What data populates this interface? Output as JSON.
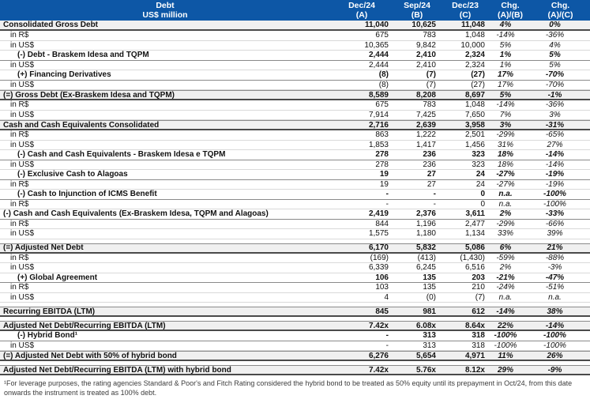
{
  "header": {
    "title": "Debt",
    "subtitle": "US$ million",
    "columns": [
      {
        "line1": "Dec/24",
        "line2": "(A)"
      },
      {
        "line1": "Sep/24",
        "line2": "(B)"
      },
      {
        "line1": "Dec/23",
        "line2": "(C)"
      },
      {
        "line1": "Chg.",
        "line2": "(A)/(B)"
      },
      {
        "line1": "Chg.",
        "line2": "(A)/(C)"
      }
    ]
  },
  "colors": {
    "header_bg": "#0d57a6",
    "header_text": "#ffffff",
    "section_row_bg": "#f0f0f0",
    "border_dark": "#4a4a4a",
    "border_medium": "#8a8a8a",
    "border_light": "#d9d9d9"
  },
  "rows": [
    {
      "label": "Consolidated Gross Debt",
      "a": "11,040",
      "b": "10,625",
      "c": "11,048",
      "ab": "4%",
      "ac": "0%",
      "style": "section",
      "indent": 0,
      "first": true
    },
    {
      "label": "in R$",
      "a": "675",
      "b": "783",
      "c": "1,048",
      "ab": "-14%",
      "ac": "-36%",
      "style": "sub",
      "indent": 1
    },
    {
      "label": "in US$",
      "a": "10,365",
      "b": "9,842",
      "c": "10,000",
      "ab": "5%",
      "ac": "4%",
      "style": "sub",
      "indent": 1
    },
    {
      "label": "(-) Debt - Braskem Idesa and TQPM",
      "a": "2,444",
      "b": "2,410",
      "c": "2,324",
      "ab": "1%",
      "ac": "5%",
      "style": "bold",
      "indent": 2
    },
    {
      "label": "in US$",
      "a": "2,444",
      "b": "2,410",
      "c": "2,324",
      "ab": "1%",
      "ac": "5%",
      "style": "sub",
      "indent": 1
    },
    {
      "label": "(+) Financing Derivatives",
      "a": "(8)",
      "b": "(7)",
      "c": "(27)",
      "ab": "17%",
      "ac": "-70%",
      "style": "bold",
      "indent": 2
    },
    {
      "label": "in US$",
      "a": "(8)",
      "b": "(7)",
      "c": "(27)",
      "ab": "17%",
      "ac": "-70%",
      "style": "sub",
      "indent": 1
    },
    {
      "label": "(=) Gross Debt (Ex-Braskem Idesa and TQPM)",
      "a": "8,589",
      "b": "8,208",
      "c": "8,697",
      "ab": "5%",
      "ac": "-1%",
      "style": "section",
      "indent": 0
    },
    {
      "label": "in R$",
      "a": "675",
      "b": "783",
      "c": "1,048",
      "ab": "-14%",
      "ac": "-36%",
      "style": "sub",
      "indent": 1
    },
    {
      "label": "in US$",
      "a": "7,914",
      "b": "7,425",
      "c": "7,650",
      "ab": "7%",
      "ac": "3%",
      "style": "sub",
      "indent": 1
    },
    {
      "label": "Cash and Cash Equivalents Consolidated",
      "a": "2,716",
      "b": "2,639",
      "c": "3,958",
      "ab": "3%",
      "ac": "-31%",
      "style": "section",
      "indent": 0
    },
    {
      "label": "in R$",
      "a": "863",
      "b": "1,222",
      "c": "2,501",
      "ab": "-29%",
      "ac": "-65%",
      "style": "sub",
      "indent": 1
    },
    {
      "label": "in US$",
      "a": "1,853",
      "b": "1,417",
      "c": "1,456",
      "ab": "31%",
      "ac": "27%",
      "style": "sub",
      "indent": 1
    },
    {
      "label": "(-) Cash and Cash Equivalents - Braskem Idesa e TQPM",
      "a": "278",
      "b": "236",
      "c": "323",
      "ab": "18%",
      "ac": "-14%",
      "style": "bold",
      "indent": 2
    },
    {
      "label": "in US$",
      "a": "278",
      "b": "236",
      "c": "323",
      "ab": "18%",
      "ac": "-14%",
      "style": "sub",
      "indent": 1
    },
    {
      "label": "(-) Exclusive Cash to Alagoas",
      "a": "19",
      "b": "27",
      "c": "24",
      "ab": "-27%",
      "ac": "-19%",
      "style": "bold",
      "indent": 2
    },
    {
      "label": "in R$",
      "a": "19",
      "b": "27",
      "c": "24",
      "ab": "-27%",
      "ac": "-19%",
      "style": "sub",
      "indent": 1
    },
    {
      "label": "(-) Cash to Injunction of ICMS Benefit",
      "a": "-",
      "b": "-",
      "c": "0",
      "ab": "n.a.",
      "ac": "-100%",
      "style": "bold",
      "indent": 2
    },
    {
      "label": "in R$",
      "a": "-",
      "b": "-",
      "c": "0",
      "ab": "n.a.",
      "ac": "-100%",
      "style": "sub",
      "indent": 1
    },
    {
      "label": "(-) Cash and Cash Equivalents (Ex-Braskem Idesa, TQPM and Alagoas)",
      "a": "2,419",
      "b": "2,376",
      "c": "3,611",
      "ab": "2%",
      "ac": "-33%",
      "style": "bold",
      "indent": 0
    },
    {
      "label": "in R$",
      "a": "844",
      "b": "1,196",
      "c": "2,477",
      "ab": "-29%",
      "ac": "-66%",
      "style": "sub",
      "indent": 1
    },
    {
      "label": "in US$",
      "a": "1,575",
      "b": "1,180",
      "c": "1,134",
      "ab": "33%",
      "ac": "39%",
      "style": "sub",
      "indent": 1
    },
    {
      "label": "(=) Adjusted Net Debt",
      "a": "6,170",
      "b": "5,832",
      "c": "5,086",
      "ab": "6%",
      "ac": "21%",
      "style": "section",
      "indent": 0,
      "gap": true
    },
    {
      "label": "in R$",
      "a": "(169)",
      "b": "(413)",
      "c": "(1,430)",
      "ab": "-59%",
      "ac": "-88%",
      "style": "sub",
      "indent": 1
    },
    {
      "label": "in US$",
      "a": "6,339",
      "b": "6,245",
      "c": "6,516",
      "ab": "2%",
      "ac": "-3%",
      "style": "sub",
      "indent": 1
    },
    {
      "label": "(+) Global Agreement",
      "a": "106",
      "b": "135",
      "c": "203",
      "ab": "-21%",
      "ac": "-47%",
      "style": "bold",
      "indent": 2
    },
    {
      "label": "in R$",
      "a": "103",
      "b": "135",
      "c": "210",
      "ab": "-24%",
      "ac": "-51%",
      "style": "sub",
      "indent": 1
    },
    {
      "label": "in US$",
      "a": "4",
      "b": "(0)",
      "c": "(7)",
      "ab": "n.a.",
      "ac": "n.a.",
      "style": "sub",
      "indent": 1
    },
    {
      "label": "Recurring EBITDA (LTM)",
      "a": "845",
      "b": "981",
      "c": "612",
      "ab": "-14%",
      "ac": "38%",
      "style": "section",
      "indent": 0,
      "gap": true
    },
    {
      "label": "Adjusted Net Debt/Recurring EBITDA (LTM)",
      "a": "7.42x",
      "b": "6.08x",
      "c": "8.64x",
      "ab": "22%",
      "ac": "-14%",
      "style": "section",
      "indent": 0,
      "gap": true
    },
    {
      "label": "(-) Hybrid Bond¹",
      "a": "-",
      "b": "313",
      "c": "318",
      "ab": "-100%",
      "ac": "-100%",
      "style": "bold",
      "indent": 2
    },
    {
      "label": "in US$",
      "a": "-",
      "b": "313",
      "c": "318",
      "ab": "-100%",
      "ac": "-100%",
      "style": "sub",
      "indent": 1
    },
    {
      "label": "(=) Adjusted Net Debt with 50% of hybrid bond",
      "a": "6,276",
      "b": "5,654",
      "c": "4,971",
      "ab": "11%",
      "ac": "26%",
      "style": "section",
      "indent": 0
    },
    {
      "label": "Adjusted Net Debt/Recurring EBITDA (LTM) with hybrid bond",
      "a": "7.42x",
      "b": "5.76x",
      "c": "8.12x",
      "ab": "29%",
      "ac": "-9%",
      "style": "section",
      "indent": 0,
      "gap": true
    }
  ],
  "footnote": "¹For leverage purposes, the rating agencies Standard & Poor's and Fitch Rating considered the hybrid bond to be treated as 50% equity until its prepayment in Oct/24, from this date onwards the instrument is treated as 100% debt."
}
